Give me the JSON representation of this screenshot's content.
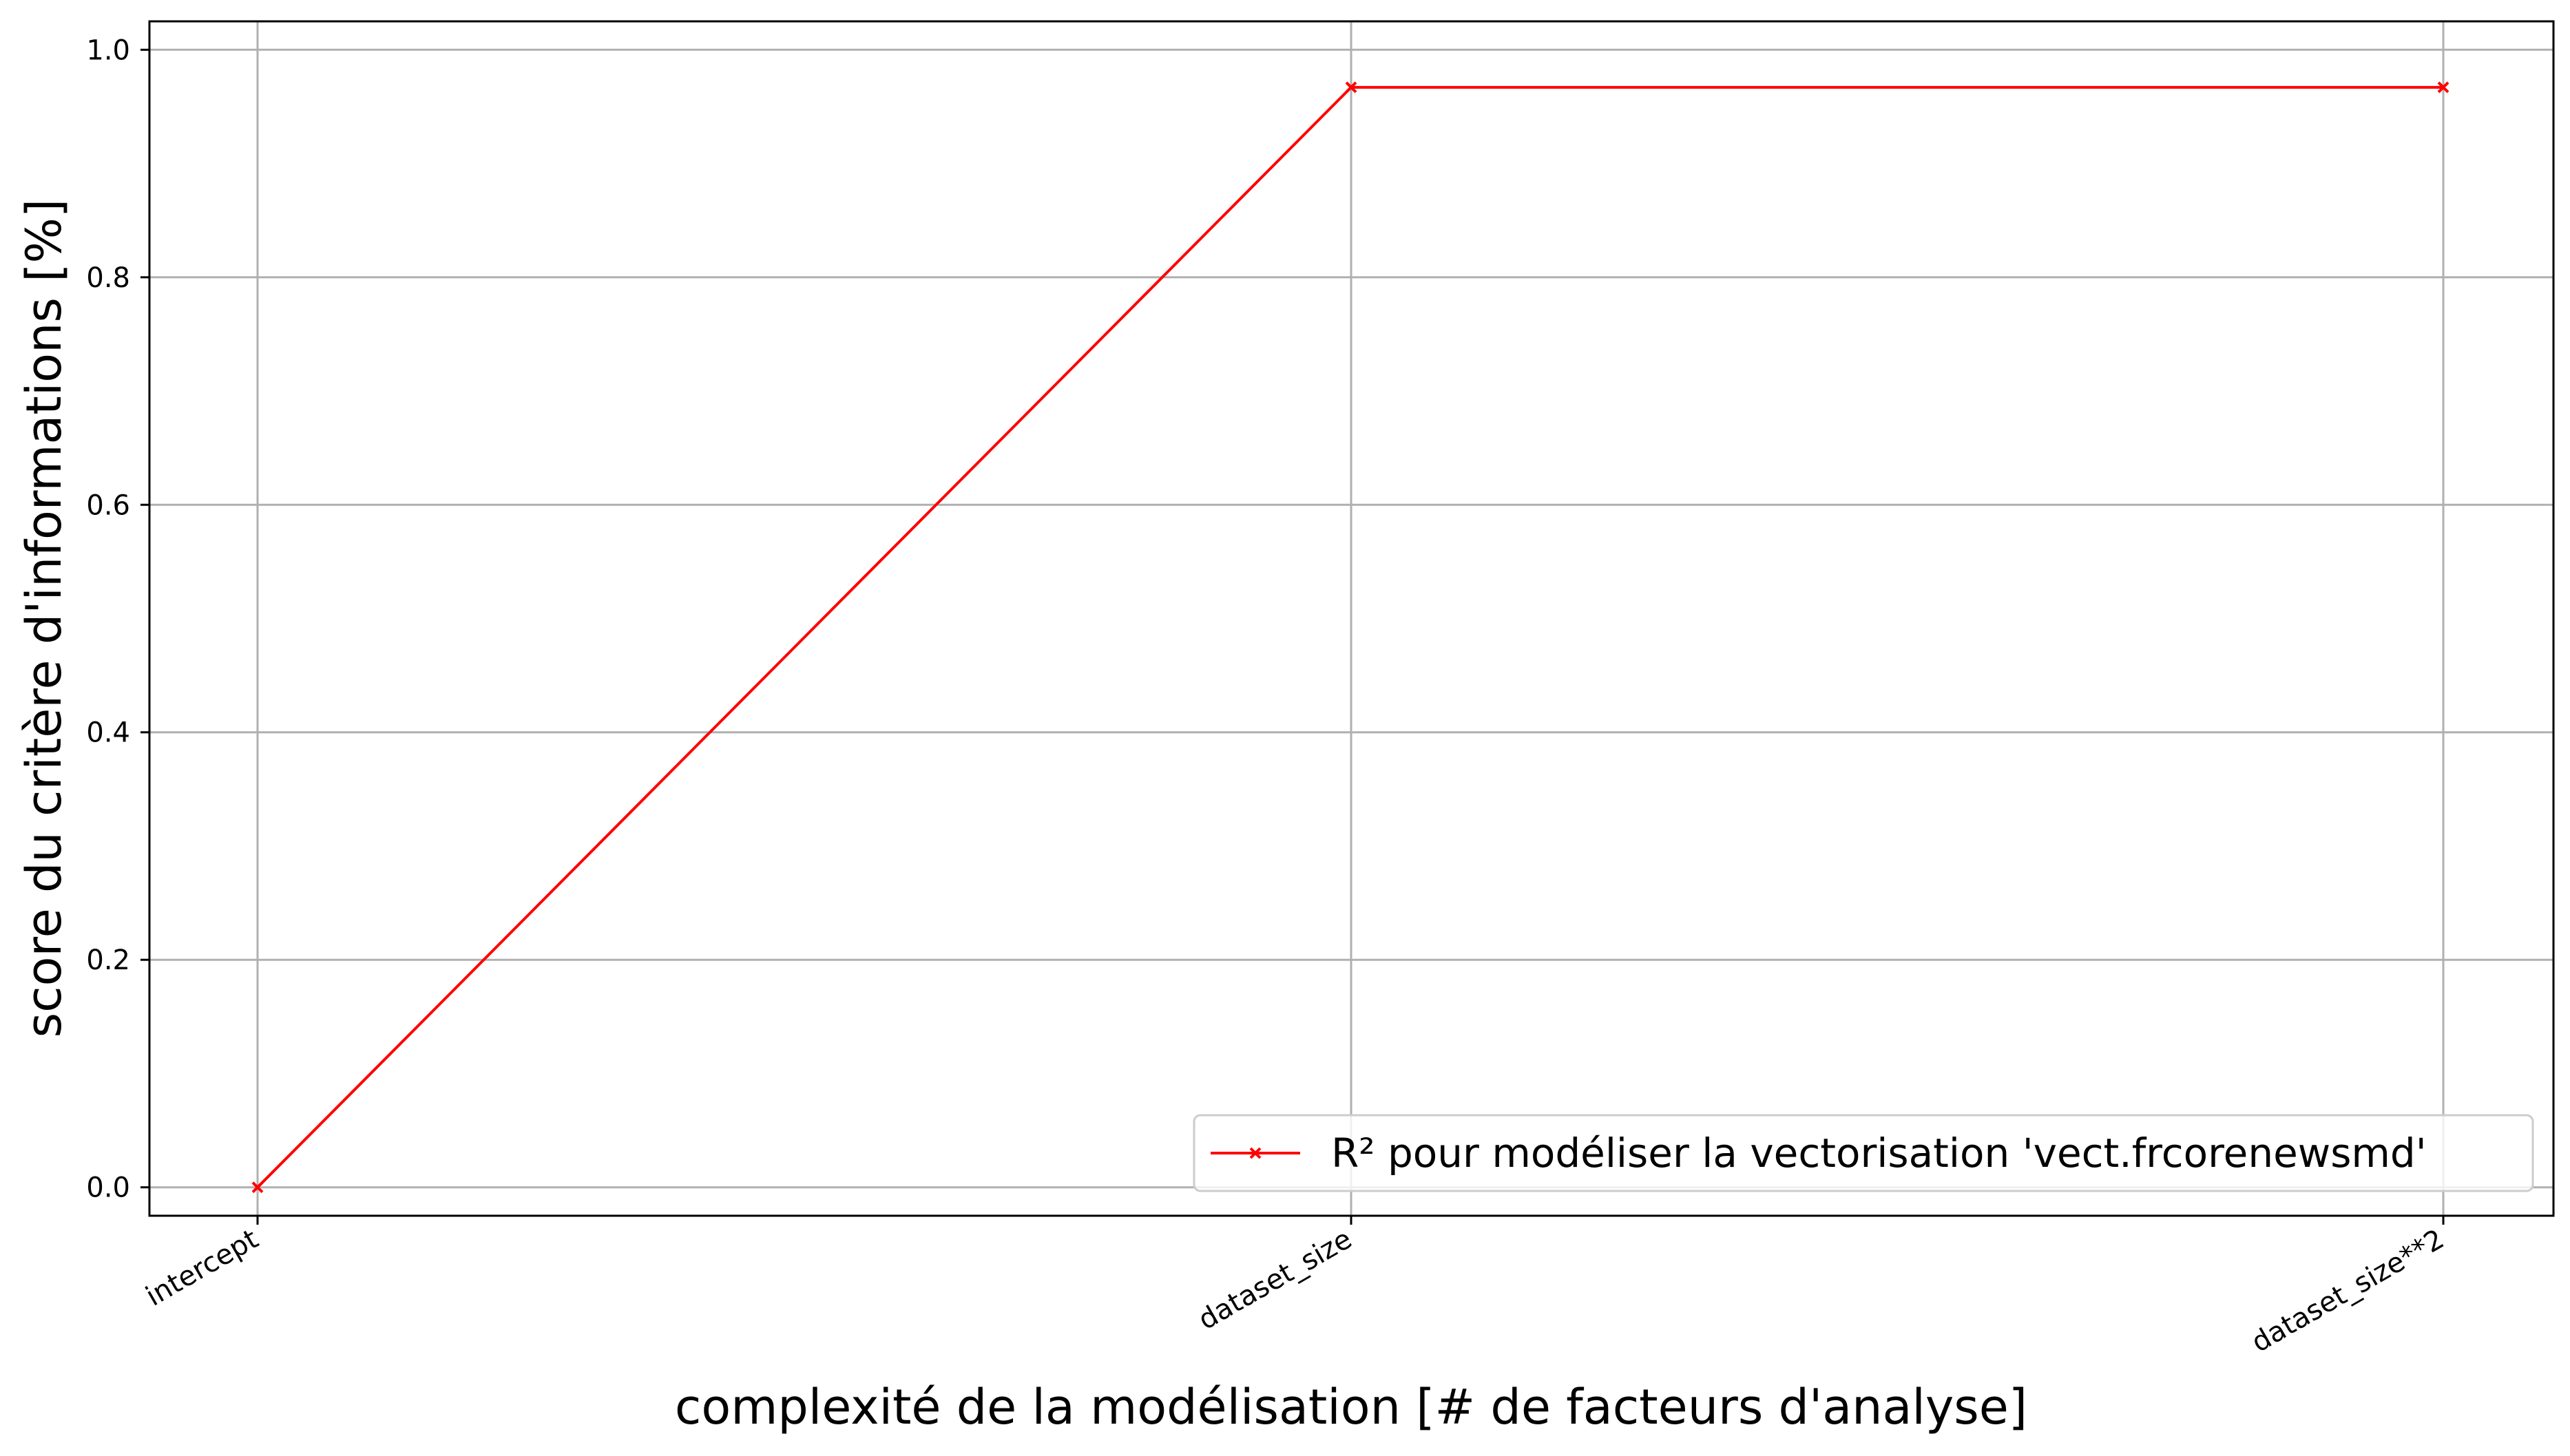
{
  "chart_data": {
    "type": "line",
    "categories": [
      "intercept",
      "dataset_size",
      "dataset_size**2"
    ],
    "series": [
      {
        "name": "R² pour modéliser la vectorisation 'vect.frcorenewsmd'",
        "values": [
          0.0,
          0.967,
          0.967
        ],
        "color": "#ff0000",
        "marker": "x"
      }
    ],
    "xlabel": "complexité de la modélisation [# de facteurs d'analyse]",
    "ylabel": "score du critère d'informations [%]",
    "ylim": [
      -0.025,
      1.025
    ],
    "yticks": [
      0.0,
      0.2,
      0.4,
      0.6,
      0.8,
      1.0
    ],
    "ytick_labels": [
      "0.0",
      "0.2",
      "0.4",
      "0.6",
      "0.8",
      "1.0"
    ],
    "grid": true,
    "legend_position": "lower-right",
    "grid_color": "#b0b0b0"
  }
}
